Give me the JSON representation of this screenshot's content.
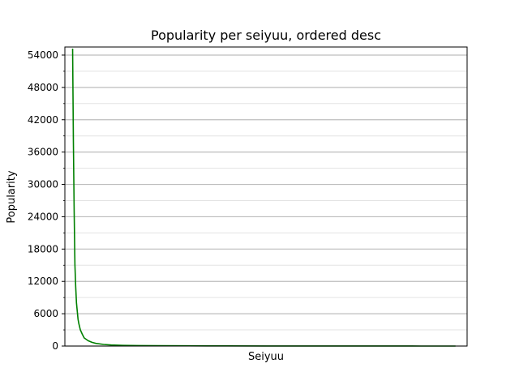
{
  "chart_data": {
    "type": "line",
    "title": "Popularity per seiyuu, ordered desc",
    "xlabel": "Seiyuu",
    "ylabel": "Popularity",
    "ylim": [
      0,
      55500
    ],
    "yticks": [
      0,
      6000,
      12000,
      18000,
      24000,
      30000,
      36000,
      42000,
      48000,
      54000
    ],
    "ytick_labels": [
      "0",
      "6000",
      "12000",
      "18000",
      "24000",
      "30000",
      "36000",
      "42000",
      "48000",
      "54000"
    ],
    "xlim": [
      -20,
      1020
    ],
    "xticks_visible": false,
    "grid": "y-major-and-minor",
    "series": [
      {
        "color": "#008000",
        "x": [
          0,
          2,
          4,
          6,
          8,
          10,
          12,
          14,
          16,
          20,
          25,
          30,
          40,
          50,
          60,
          80,
          100,
          130,
          170,
          220,
          300,
          400,
          500,
          600,
          700,
          800,
          900,
          990
        ],
        "y": [
          55200,
          38000,
          25000,
          15000,
          11000,
          8000,
          6500,
          5000,
          4200,
          3000,
          2200,
          1500,
          1000,
          700,
          500,
          300,
          200,
          130,
          90,
          60,
          40,
          25,
          15,
          10,
          6,
          4,
          2,
          1
        ]
      }
    ]
  }
}
